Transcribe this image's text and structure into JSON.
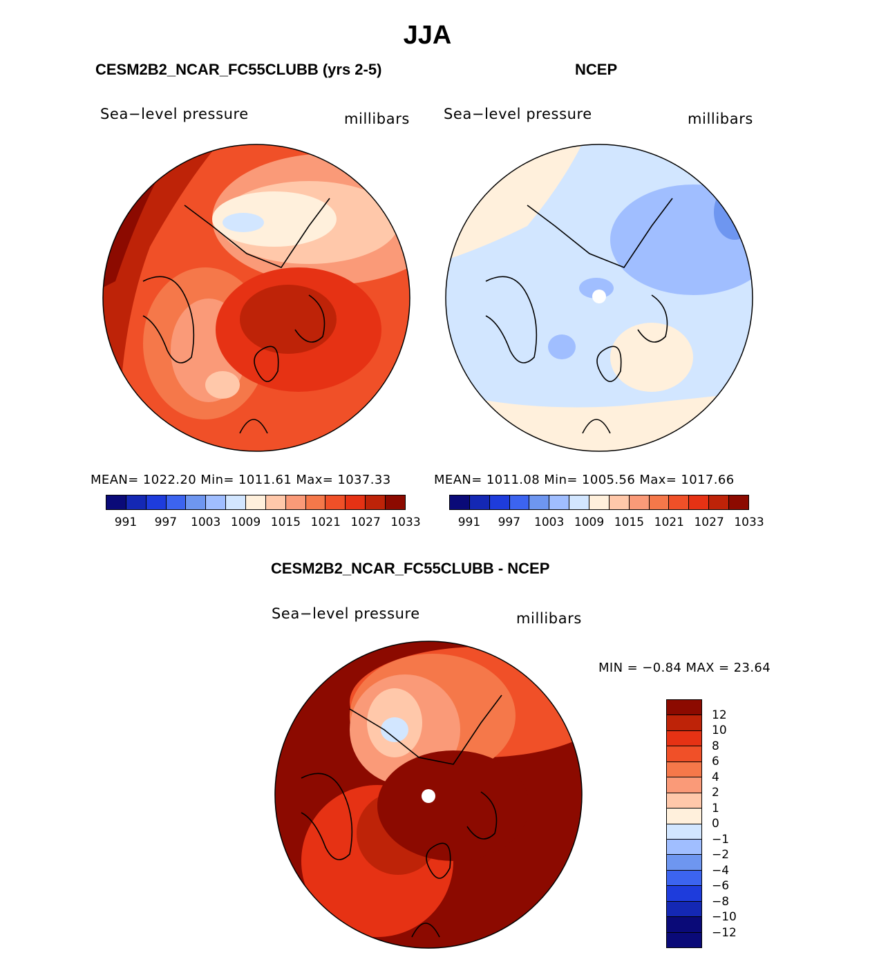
{
  "figure": {
    "title": "JJA"
  },
  "panels": {
    "model": {
      "title": "CESM2B2_NCAR_FC55CLUBB (yrs 2-5)",
      "variable": "Sea−level pressure",
      "units": "millibars",
      "stats": "MEAN= 1022.20   Min= 1011.61   Max= 1037.33"
    },
    "obs": {
      "title": "NCEP",
      "variable": "Sea−level pressure",
      "units": "millibars",
      "stats": "MEAN= 1011.08   Min= 1005.56   Max= 1017.66"
    },
    "diff": {
      "title": "CESM2B2_NCAR_FC55CLUBB - NCEP",
      "variable": "Sea−level pressure",
      "units": "millibars",
      "stats": "MIN =   −0.84  MAX =   23.64"
    }
  },
  "colorbar_abs": {
    "colors": [
      "#0a0a78",
      "#1428b4",
      "#1e3cdc",
      "#3c64f0",
      "#6e96f0",
      "#a0beff",
      "#d2e6ff",
      "#fff0dc",
      "#ffc8aa",
      "#fa9a78",
      "#f5784a",
      "#f05028",
      "#e63214",
      "#be2308",
      "#8c0a00"
    ],
    "ticks": [
      "991",
      "997",
      "1003",
      "1009",
      "1015",
      "1021",
      "1027",
      "1033"
    ]
  },
  "colorbar_diff": {
    "colors": [
      "#8c0a00",
      "#be2308",
      "#e63214",
      "#f05028",
      "#f5784a",
      "#fa9a78",
      "#ffc8aa",
      "#fff0dc",
      "#d2e6ff",
      "#a0beff",
      "#6e96f0",
      "#3c64f0",
      "#1e3cdc",
      "#1428b4",
      "#0a0a78",
      "#0a0a78"
    ],
    "ticks": [
      "12",
      "10",
      "8",
      "6",
      "4",
      "2",
      "1",
      "0",
      "−1",
      "−2",
      "−4",
      "−6",
      "−8",
      "−10",
      "−12"
    ]
  }
}
